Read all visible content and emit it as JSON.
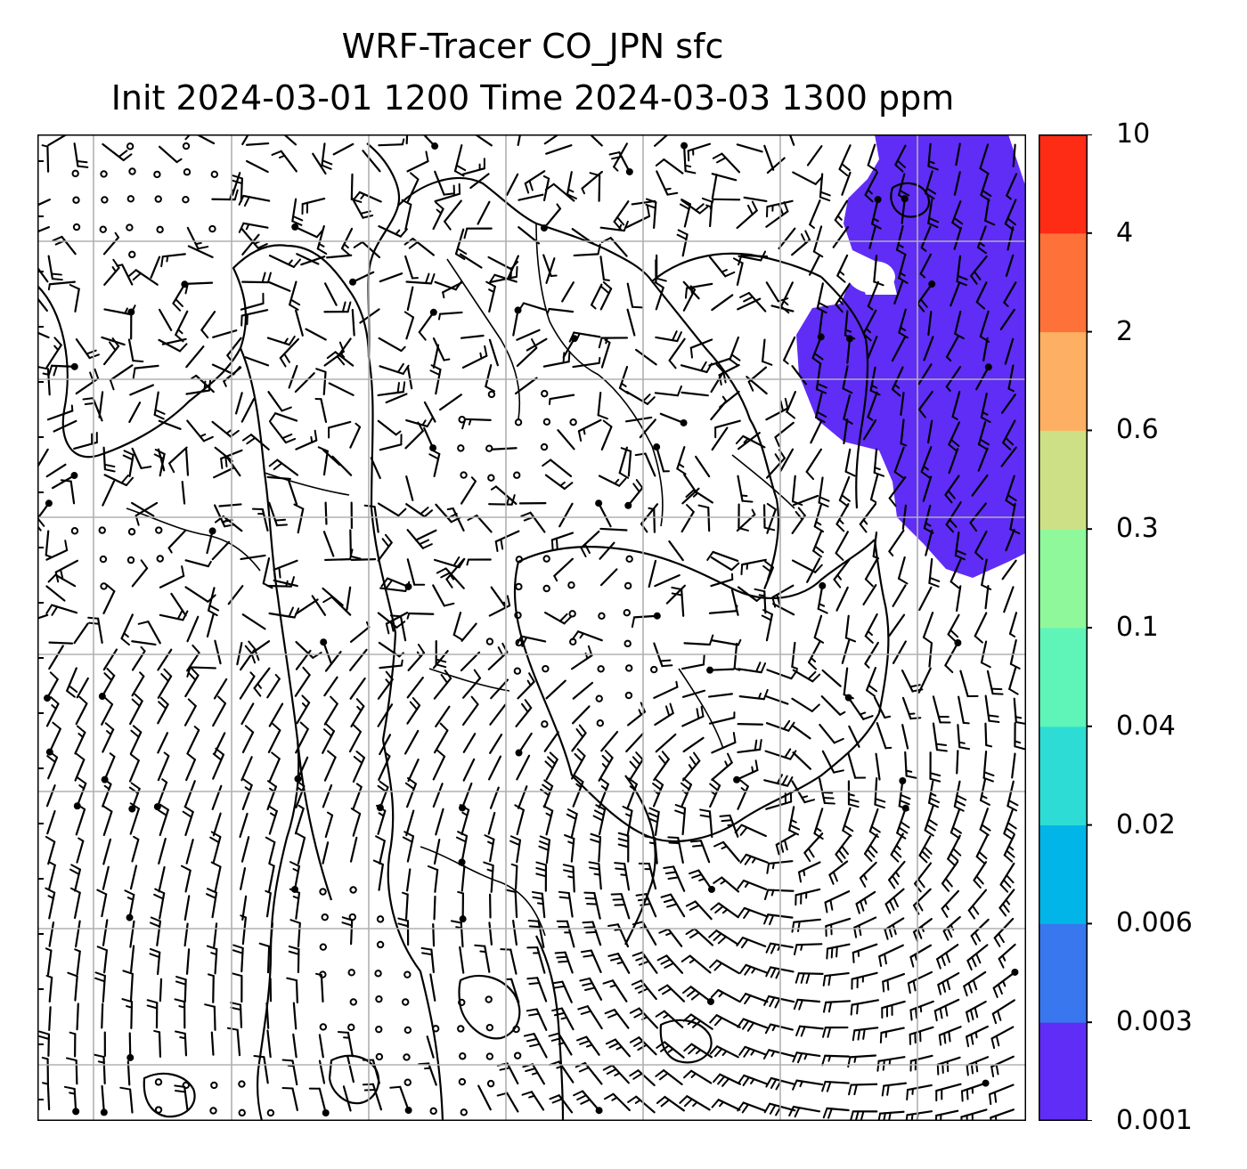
{
  "title": {
    "line1": "WRF-Tracer CO_JPN sfc",
    "line2": "Init 2024-03-01 1200 Time 2024-03-03 1300 ppm"
  },
  "map": {
    "features": [
      "coastlines",
      "country-borders",
      "lat-lon-gridlines",
      "wind-barbs",
      "tracer-shading"
    ],
    "gridline_color": "#b0b0b0",
    "line_color": "#000000"
  },
  "colorbar": {
    "levels": [
      "0.001",
      "0.003",
      "0.006",
      "0.02",
      "0.04",
      "0.1",
      "0.3",
      "0.6",
      "2",
      "4",
      "10"
    ],
    "colors": [
      "#5f2df5",
      "#3877ee",
      "#02b5e8",
      "#2ddcd4",
      "#5ff5b9",
      "#8ef89b",
      "#cde085",
      "#fdb063",
      "#fe7139",
      "#fe2b15"
    ]
  },
  "shading": {
    "color": "#5f2df5",
    "level_range": [
      "0.001",
      "0.003"
    ]
  }
}
